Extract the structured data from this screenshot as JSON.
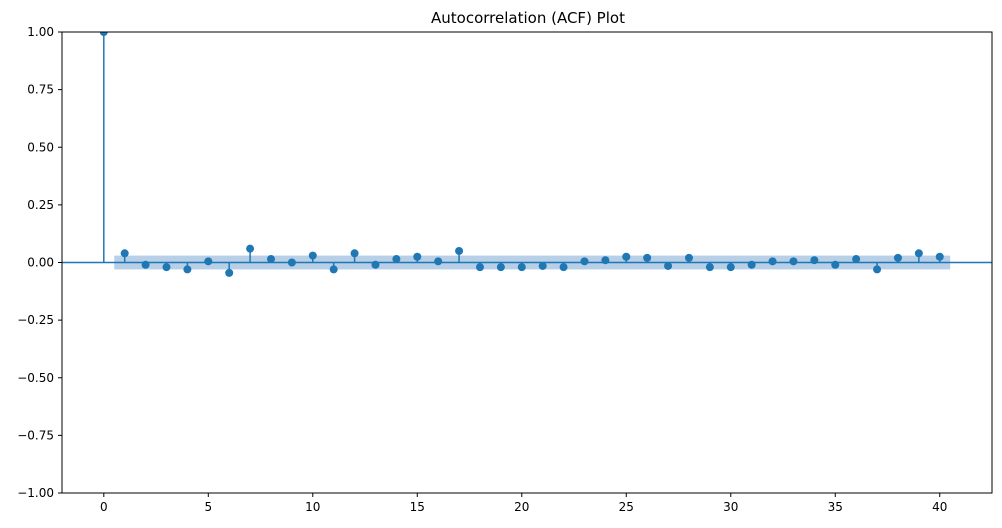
{
  "chart_data": {
    "type": "stem",
    "title": "Autocorrelation (ACF) Plot",
    "xlabel": "",
    "ylabel": "",
    "xlim": [
      -2,
      42.5
    ],
    "ylim": [
      -1.0,
      1.0
    ],
    "x_ticks": [
      0,
      5,
      10,
      15,
      20,
      25,
      30,
      35,
      40
    ],
    "y_ticks": [
      -1.0,
      -0.75,
      -0.5,
      -0.25,
      0.0,
      0.25,
      0.5,
      0.75,
      1.0
    ],
    "x_tick_labels": [
      "0",
      "5",
      "10",
      "15",
      "20",
      "25",
      "30",
      "35",
      "40"
    ],
    "y_tick_labels": [
      "−1.00",
      "−0.75",
      "−0.50",
      "−0.25",
      "0.00",
      "0.25",
      "0.50",
      "0.75",
      "1.00"
    ],
    "grid": false,
    "lags": [
      0,
      1,
      2,
      3,
      4,
      5,
      6,
      7,
      8,
      9,
      10,
      11,
      12,
      13,
      14,
      15,
      16,
      17,
      18,
      19,
      20,
      21,
      22,
      23,
      24,
      25,
      26,
      27,
      28,
      29,
      30,
      31,
      32,
      33,
      34,
      35,
      36,
      37,
      38,
      39,
      40
    ],
    "values": [
      1.0,
      0.04,
      -0.01,
      -0.02,
      -0.03,
      0.005,
      -0.045,
      0.06,
      0.015,
      0.0,
      0.03,
      -0.03,
      0.04,
      -0.01,
      0.015,
      0.025,
      0.005,
      0.05,
      -0.02,
      -0.02,
      -0.02,
      -0.015,
      -0.02,
      0.005,
      0.01,
      0.025,
      0.02,
      -0.015,
      0.02,
      -0.02,
      -0.02,
      -0.01,
      0.005,
      0.005,
      0.01,
      -0.01,
      0.015,
      -0.03,
      0.02,
      0.04,
      0.025
    ],
    "confidence_band": {
      "from_lag": 0.5,
      "to_lag": 40.5,
      "upper": 0.03,
      "lower": -0.03
    },
    "colors": {
      "marker": "#1f77b4",
      "band": "#b7cfe7",
      "zero_line": "#1f77b4"
    }
  }
}
